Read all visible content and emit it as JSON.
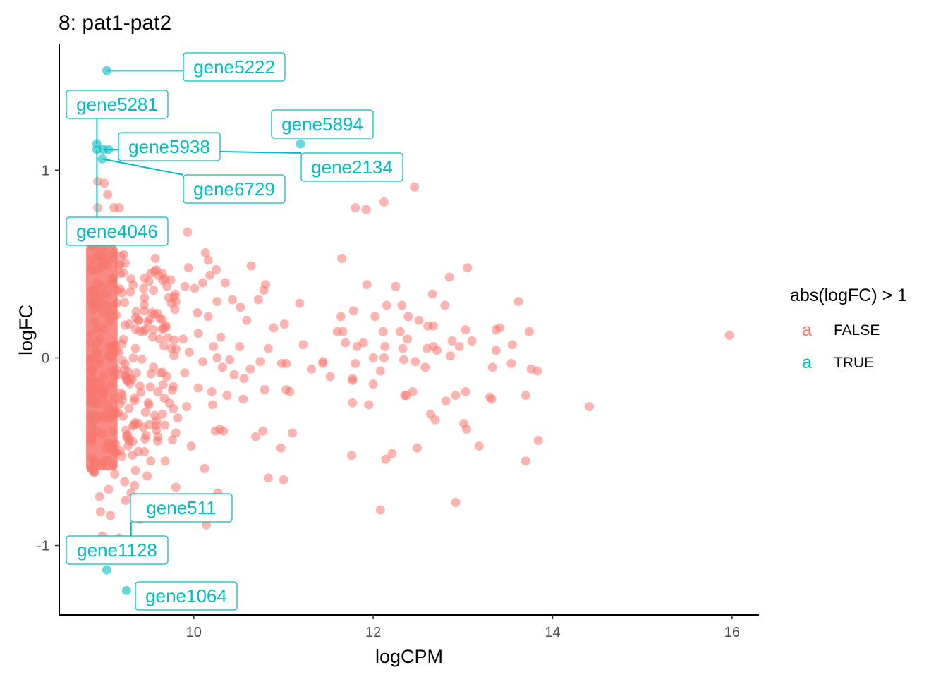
{
  "chart_data": {
    "type": "scatter",
    "title": "8: pat1-pat2",
    "xlabel": "logCPM",
    "ylabel": "logFC",
    "xlim": [
      8.5,
      16.3
    ],
    "ylim": [
      -1.37,
      1.67
    ],
    "xticks": [
      10,
      12,
      14,
      16
    ],
    "yticks": [
      -1,
      0,
      1
    ],
    "grid": false,
    "legend": {
      "title": "abs(logFC) > 1",
      "position": "right",
      "glyph": "a",
      "entries": [
        {
          "label": "FALSE",
          "color": "#F8766D"
        },
        {
          "label": "TRUE",
          "color": "#00BFC4"
        }
      ]
    },
    "series": [
      {
        "name": "TRUE",
        "color": "#00BFC4",
        "points": [
          {
            "x": 9.03,
            "y": 1.53,
            "label": "gene5222"
          },
          {
            "x": 8.92,
            "y": 1.14,
            "label": "gene5281"
          },
          {
            "x": 9.05,
            "y": 1.11,
            "label": "gene5938"
          },
          {
            "x": 11.19,
            "y": 1.14,
            "label": "gene5894"
          },
          {
            "x": 8.99,
            "y": 1.11,
            "label": "gene2134"
          },
          {
            "x": 8.98,
            "y": 1.06,
            "label": "gene6729"
          },
          {
            "x": 8.92,
            "y": 1.11,
            "label": "gene4046"
          },
          {
            "x": 9.3,
            "y": -1.0,
            "label": "gene511"
          },
          {
            "x": 9.03,
            "y": -1.13,
            "label": "gene1128"
          },
          {
            "x": 9.25,
            "y": -1.24,
            "label": "gene1064"
          }
        ]
      },
      {
        "name": "FALSE",
        "color": "#F8766D",
        "points": [
          {
            "x": 8.93,
            "y": 0.94
          },
          {
            "x": 9.0,
            "y": 0.93
          },
          {
            "x": 9.04,
            "y": 0.87
          },
          {
            "x": 8.93,
            "y": 0.8
          },
          {
            "x": 9.11,
            "y": 0.8
          },
          {
            "x": 9.17,
            "y": 0.8
          },
          {
            "x": 9.53,
            "y": 0.64
          },
          {
            "x": 9.93,
            "y": 0.67
          },
          {
            "x": 9.57,
            "y": 0.53
          },
          {
            "x": 10.13,
            "y": 0.56
          },
          {
            "x": 10.16,
            "y": 0.52
          },
          {
            "x": 10.64,
            "y": 0.49
          },
          {
            "x": 11.65,
            "y": 0.53
          },
          {
            "x": 13.05,
            "y": 0.48
          },
          {
            "x": 12.85,
            "y": 0.43
          },
          {
            "x": 10.8,
            "y": 0.39
          },
          {
            "x": 10.78,
            "y": 0.36
          },
          {
            "x": 11.93,
            "y": 0.39
          },
          {
            "x": 12.25,
            "y": 0.38
          },
          {
            "x": 12.66,
            "y": 0.34
          },
          {
            "x": 13.62,
            "y": 0.3
          },
          {
            "x": 10.72,
            "y": 0.31
          },
          {
            "x": 11.18,
            "y": 0.29
          },
          {
            "x": 11.78,
            "y": 0.25
          },
          {
            "x": 12.02,
            "y": 0.22
          },
          {
            "x": 12.15,
            "y": 0.28
          },
          {
            "x": 12.32,
            "y": 0.28
          },
          {
            "x": 12.39,
            "y": 0.22
          },
          {
            "x": 12.8,
            "y": 0.28
          },
          {
            "x": 11.64,
            "y": 0.22
          },
          {
            "x": 12.51,
            "y": 0.2
          },
          {
            "x": 10.59,
            "y": 0.2
          },
          {
            "x": 11.01,
            "y": 0.18
          },
          {
            "x": 10.89,
            "y": 0.16
          },
          {
            "x": 11.6,
            "y": 0.14
          },
          {
            "x": 11.66,
            "y": 0.14
          },
          {
            "x": 12.11,
            "y": 0.14
          },
          {
            "x": 12.3,
            "y": 0.14
          },
          {
            "x": 12.67,
            "y": 0.17
          },
          {
            "x": 13.03,
            "y": 0.15
          },
          {
            "x": 13.37,
            "y": 0.15
          },
          {
            "x": 13.74,
            "y": 0.14
          },
          {
            "x": 12.61,
            "y": 0.17
          },
          {
            "x": 13.41,
            "y": 0.16
          },
          {
            "x": 15.97,
            "y": 0.12
          },
          {
            "x": 11.69,
            "y": 0.08
          },
          {
            "x": 11.89,
            "y": 0.08
          },
          {
            "x": 12.38,
            "y": 0.1
          },
          {
            "x": 12.88,
            "y": 0.09
          },
          {
            "x": 13.1,
            "y": 0.09
          },
          {
            "x": 11.82,
            "y": 0.06
          },
          {
            "x": 12.13,
            "y": 0.06
          },
          {
            "x": 12.33,
            "y": 0.05
          },
          {
            "x": 12.6,
            "y": 0.05
          },
          {
            "x": 12.71,
            "y": 0.04
          },
          {
            "x": 12.96,
            "y": 0.06
          },
          {
            "x": 13.37,
            "y": 0.04
          },
          {
            "x": 13.55,
            "y": 0.07
          },
          {
            "x": 12.67,
            "y": 0.06
          },
          {
            "x": 12.86,
            "y": 0.01
          },
          {
            "x": 11.22,
            "y": 0.07
          },
          {
            "x": 10.83,
            "y": 0.05
          },
          {
            "x": 10.51,
            "y": 0.06
          },
          {
            "x": 10.98,
            "y": -0.03
          },
          {
            "x": 11.03,
            "y": -0.03
          },
          {
            "x": 11.44,
            "y": -0.02
          },
          {
            "x": 11.44,
            "y": -0.03
          },
          {
            "x": 11.8,
            "y": -0.03
          },
          {
            "x": 12.0,
            "y": 0.0
          },
          {
            "x": 12.12,
            "y": 0.0
          },
          {
            "x": 12.47,
            "y": -0.02
          },
          {
            "x": 12.58,
            "y": -0.05
          },
          {
            "x": 12.34,
            "y": -0.01
          },
          {
            "x": 13.33,
            "y": -0.05
          },
          {
            "x": 13.54,
            "y": -0.03
          },
          {
            "x": 13.76,
            "y": -0.06
          },
          {
            "x": 13.83,
            "y": -0.07
          },
          {
            "x": 11.31,
            "y": -0.06
          },
          {
            "x": 11.52,
            "y": -0.1
          },
          {
            "x": 12.08,
            "y": -0.07
          },
          {
            "x": 10.74,
            "y": -0.02
          },
          {
            "x": 10.63,
            "y": -0.06
          },
          {
            "x": 10.45,
            "y": -0.09
          },
          {
            "x": 10.56,
            "y": -0.11
          },
          {
            "x": 11.77,
            "y": -0.12
          },
          {
            "x": 11.77,
            "y": -0.11
          },
          {
            "x": 12.0,
            "y": -0.14
          },
          {
            "x": 12.37,
            "y": -0.2
          },
          {
            "x": 12.35,
            "y": -0.2
          },
          {
            "x": 12.44,
            "y": -0.18
          },
          {
            "x": 12.92,
            "y": -0.2
          },
          {
            "x": 13.03,
            "y": -0.18
          },
          {
            "x": 13.3,
            "y": -0.21
          },
          {
            "x": 13.32,
            "y": -0.22
          },
          {
            "x": 13.7,
            "y": -0.2
          },
          {
            "x": 12.81,
            "y": -0.23
          },
          {
            "x": 11.07,
            "y": -0.18
          },
          {
            "x": 11.03,
            "y": -0.17
          },
          {
            "x": 10.79,
            "y": -0.17
          },
          {
            "x": 10.55,
            "y": -0.22
          },
          {
            "x": 11.95,
            "y": -0.25
          },
          {
            "x": 11.77,
            "y": -0.24
          },
          {
            "x": 14.41,
            "y": -0.26
          },
          {
            "x": 12.69,
            "y": -0.33
          },
          {
            "x": 12.64,
            "y": -0.3
          },
          {
            "x": 13.04,
            "y": -0.38
          },
          {
            "x": 13.01,
            "y": -0.35
          },
          {
            "x": 13.18,
            "y": -0.47
          },
          {
            "x": 13.84,
            "y": -0.44
          },
          {
            "x": 13.7,
            "y": -0.55
          },
          {
            "x": 12.49,
            "y": -0.48
          },
          {
            "x": 12.21,
            "y": -0.51
          },
          {
            "x": 12.14,
            "y": -0.54
          },
          {
            "x": 11.76,
            "y": -0.52
          },
          {
            "x": 11.1,
            "y": -0.4
          },
          {
            "x": 10.97,
            "y": -0.48
          },
          {
            "x": 10.77,
            "y": -0.39
          },
          {
            "x": 10.69,
            "y": -0.42
          },
          {
            "x": 10.83,
            "y": -0.64
          },
          {
            "x": 11.0,
            "y": -0.65
          },
          {
            "x": 10.12,
            "y": -0.59
          },
          {
            "x": 10.33,
            "y": -0.39
          },
          {
            "x": 10.29,
            "y": -0.38
          },
          {
            "x": 10.24,
            "y": -0.39
          },
          {
            "x": 9.97,
            "y": -0.47
          },
          {
            "x": 12.92,
            "y": -0.77
          },
          {
            "x": 12.08,
            "y": -0.81
          },
          {
            "x": 10.27,
            "y": -0.72
          },
          {
            "x": 10.14,
            "y": -0.89
          },
          {
            "x": 9.8,
            "y": -0.69
          },
          {
            "x": 9.72,
            "y": -0.75
          },
          {
            "x": 9.4,
            "y": -0.86
          },
          {
            "x": 9.24,
            "y": -0.76
          },
          {
            "x": 8.96,
            "y": -0.82
          },
          {
            "x": 9.07,
            "y": -0.84
          },
          {
            "x": 8.98,
            "y": -0.95
          },
          {
            "x": 9.17,
            "y": -0.96
          },
          {
            "x": 11.8,
            "y": 0.8
          },
          {
            "x": 11.92,
            "y": 0.79
          },
          {
            "x": 12.12,
            "y": 0.83
          },
          {
            "x": 12.46,
            "y": 0.91
          },
          {
            "x": 10.43,
            "y": 0.31
          },
          {
            "x": 10.52,
            "y": 0.27
          },
          {
            "x": 10.26,
            "y": 0.3
          },
          {
            "x": 10.04,
            "y": 0.24
          },
          {
            "x": 10.16,
            "y": 0.22
          },
          {
            "x": 10.35,
            "y": 0.4
          },
          {
            "x": 10.01,
            "y": 0.37
          },
          {
            "x": 9.8,
            "y": 0.3
          },
          {
            "x": 9.9,
            "y": 0.38
          },
          {
            "x": 9.94,
            "y": 0.48
          },
          {
            "x": 10.25,
            "y": 0.47
          },
          {
            "x": 10.18,
            "y": 0.44
          },
          {
            "x": 10.1,
            "y": 0.4
          },
          {
            "x": 9.65,
            "y": 0.45
          },
          {
            "x": 9.68,
            "y": 0.42
          },
          {
            "x": 9.55,
            "y": 0.36
          },
          {
            "x": 9.45,
            "y": 0.32
          },
          {
            "x": 9.75,
            "y": 0.29
          },
          {
            "x": 10.05,
            "y": 0.13
          },
          {
            "x": 10.3,
            "y": 0.11
          },
          {
            "x": 10.22,
            "y": 0.06
          },
          {
            "x": 10.26,
            "y": 0.0
          },
          {
            "x": 10.4,
            "y": -0.01
          },
          {
            "x": 10.32,
            "y": -0.05
          },
          {
            "x": 10.1,
            "y": -0.02
          },
          {
            "x": 9.88,
            "y": 0.1
          },
          {
            "x": 9.95,
            "y": 0.03
          },
          {
            "x": 9.9,
            "y": -0.08
          },
          {
            "x": 10.05,
            "y": -0.16
          },
          {
            "x": 10.2,
            "y": -0.18
          },
          {
            "x": 10.37,
            "y": -0.2
          },
          {
            "x": 10.21,
            "y": -0.25
          },
          {
            "x": 9.92,
            "y": -0.26
          },
          {
            "x": 9.82,
            "y": -0.32
          },
          {
            "x": 9.65,
            "y": -0.3
          },
          {
            "x": 9.58,
            "y": -0.36
          },
          {
            "x": 9.6,
            "y": -0.42
          },
          {
            "x": 9.45,
            "y": -0.5
          },
          {
            "x": 9.52,
            "y": -0.55
          },
          {
            "x": 9.68,
            "y": -0.55
          },
          {
            "x": 9.35,
            "y": -0.6
          },
          {
            "x": 9.48,
            "y": -0.63
          },
          {
            "x": 9.23,
            "y": -0.66
          },
          {
            "x": 9.12,
            "y": -0.62
          },
          {
            "x": 9.05,
            "y": -0.7
          },
          {
            "x": 9.3,
            "y": -0.72
          },
          {
            "x": 9.34,
            "y": -0.68
          },
          {
            "x": 8.95,
            "y": -0.74
          },
          {
            "x": 9.13,
            "y": -0.5
          },
          {
            "x": 9.25,
            "y": -0.42
          },
          {
            "x": 9.38,
            "y": -0.35
          },
          {
            "x": 9.5,
            "y": -0.25
          },
          {
            "x": 9.4,
            "y": -0.15
          },
          {
            "x": 9.55,
            "y": -0.05
          },
          {
            "x": 9.35,
            "y": 0.05
          },
          {
            "x": 9.55,
            "y": 0.15
          },
          {
            "x": 9.45,
            "y": 0.25
          },
          {
            "x": 9.62,
            "y": 0.1
          },
          {
            "x": 9.7,
            "y": -0.1
          },
          {
            "x": 9.75,
            "y": 0.05
          },
          {
            "x": 9.3,
            "y": 0.42
          },
          {
            "x": 9.22,
            "y": 0.55
          },
          {
            "x": 9.18,
            "y": 0.5
          },
          {
            "x": 9.14,
            "y": 0.36
          },
          {
            "x": 9.28,
            "y": 0.18
          },
          {
            "x": 9.2,
            "y": -0.2
          },
          {
            "x": 9.36,
            "y": -0.08
          },
          {
            "x": 9.62,
            "y": 0.21
          },
          {
            "x": 9.7,
            "y": 0.38
          },
          {
            "x": 9.8,
            "y": -0.4
          },
          {
            "x": 9.6,
            "y": -0.18
          },
          {
            "x": 9.52,
            "y": 0.45
          }
        ]
      }
    ]
  }
}
